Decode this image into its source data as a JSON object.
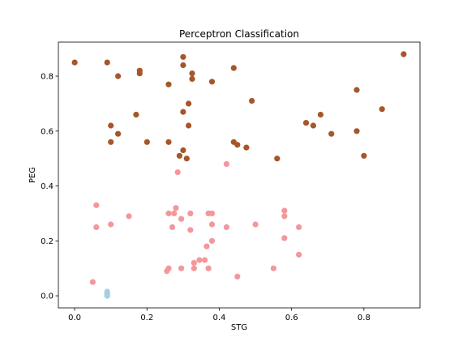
{
  "chart_data": {
    "type": "scatter",
    "title": "Perceptron Classification",
    "xlabel": "STG",
    "ylabel": "PEG",
    "xlim": [
      -0.045,
      0.955
    ],
    "ylim": [
      -0.044,
      0.924
    ],
    "xticks": [
      "0.0",
      "0.2",
      "0.4",
      "0.6",
      "0.8"
    ],
    "xtick_values": [
      0.0,
      0.2,
      0.4,
      0.6,
      0.8
    ],
    "yticks": [
      "0.0",
      "0.2",
      "0.4",
      "0.6",
      "0.8"
    ],
    "ytick_values": [
      0.0,
      0.2,
      0.4,
      0.6,
      0.8
    ],
    "grid": false,
    "series": [
      {
        "color": "#a65628",
        "points": [
          [
            0.0,
            0.85
          ],
          [
            0.09,
            0.85
          ],
          [
            0.12,
            0.8
          ],
          [
            0.18,
            0.82
          ],
          [
            0.18,
            0.81
          ],
          [
            0.26,
            0.77
          ],
          [
            0.3,
            0.87
          ],
          [
            0.3,
            0.84
          ],
          [
            0.325,
            0.81
          ],
          [
            0.325,
            0.79
          ],
          [
            0.38,
            0.78
          ],
          [
            0.44,
            0.83
          ],
          [
            0.91,
            0.88
          ],
          [
            0.78,
            0.75
          ],
          [
            0.49,
            0.71
          ],
          [
            0.85,
            0.68
          ],
          [
            0.68,
            0.66
          ],
          [
            0.315,
            0.7
          ],
          [
            0.17,
            0.66
          ],
          [
            0.3,
            0.67
          ],
          [
            0.64,
            0.63
          ],
          [
            0.66,
            0.62
          ],
          [
            0.1,
            0.62
          ],
          [
            0.315,
            0.62
          ],
          [
            0.12,
            0.59
          ],
          [
            0.78,
            0.6
          ],
          [
            0.71,
            0.59
          ],
          [
            0.1,
            0.56
          ],
          [
            0.2,
            0.56
          ],
          [
            0.26,
            0.56
          ],
          [
            0.44,
            0.56
          ],
          [
            0.45,
            0.55
          ],
          [
            0.475,
            0.54
          ],
          [
            0.3,
            0.53
          ],
          [
            0.29,
            0.51
          ],
          [
            0.31,
            0.5
          ],
          [
            0.56,
            0.5
          ],
          [
            0.8,
            0.51
          ]
        ]
      },
      {
        "color": "#f4979a",
        "points": [
          [
            0.42,
            0.48
          ],
          [
            0.285,
            0.45
          ],
          [
            0.06,
            0.33
          ],
          [
            0.28,
            0.32
          ],
          [
            0.58,
            0.31
          ],
          [
            0.26,
            0.3
          ],
          [
            0.275,
            0.3
          ],
          [
            0.32,
            0.3
          ],
          [
            0.37,
            0.3
          ],
          [
            0.38,
            0.3
          ],
          [
            0.58,
            0.29
          ],
          [
            0.15,
            0.29
          ],
          [
            0.295,
            0.28
          ],
          [
            0.1,
            0.26
          ],
          [
            0.38,
            0.26
          ],
          [
            0.5,
            0.26
          ],
          [
            0.06,
            0.25
          ],
          [
            0.27,
            0.25
          ],
          [
            0.42,
            0.25
          ],
          [
            0.62,
            0.25
          ],
          [
            0.32,
            0.24
          ],
          [
            0.58,
            0.21
          ],
          [
            0.38,
            0.2
          ],
          [
            0.365,
            0.18
          ],
          [
            0.62,
            0.15
          ],
          [
            0.345,
            0.13
          ],
          [
            0.36,
            0.13
          ],
          [
            0.33,
            0.12
          ],
          [
            0.295,
            0.1
          ],
          [
            0.33,
            0.1
          ],
          [
            0.37,
            0.1
          ],
          [
            0.55,
            0.1
          ],
          [
            0.26,
            0.1
          ],
          [
            0.255,
            0.09
          ],
          [
            0.45,
            0.07
          ],
          [
            0.05,
            0.05
          ]
        ]
      },
      {
        "color": "#a6cee3",
        "points": [
          [
            0.09,
            0.015
          ],
          [
            0.09,
            0.01
          ],
          [
            0.09,
            0.005
          ],
          [
            0.09,
            0.0
          ]
        ]
      }
    ]
  }
}
